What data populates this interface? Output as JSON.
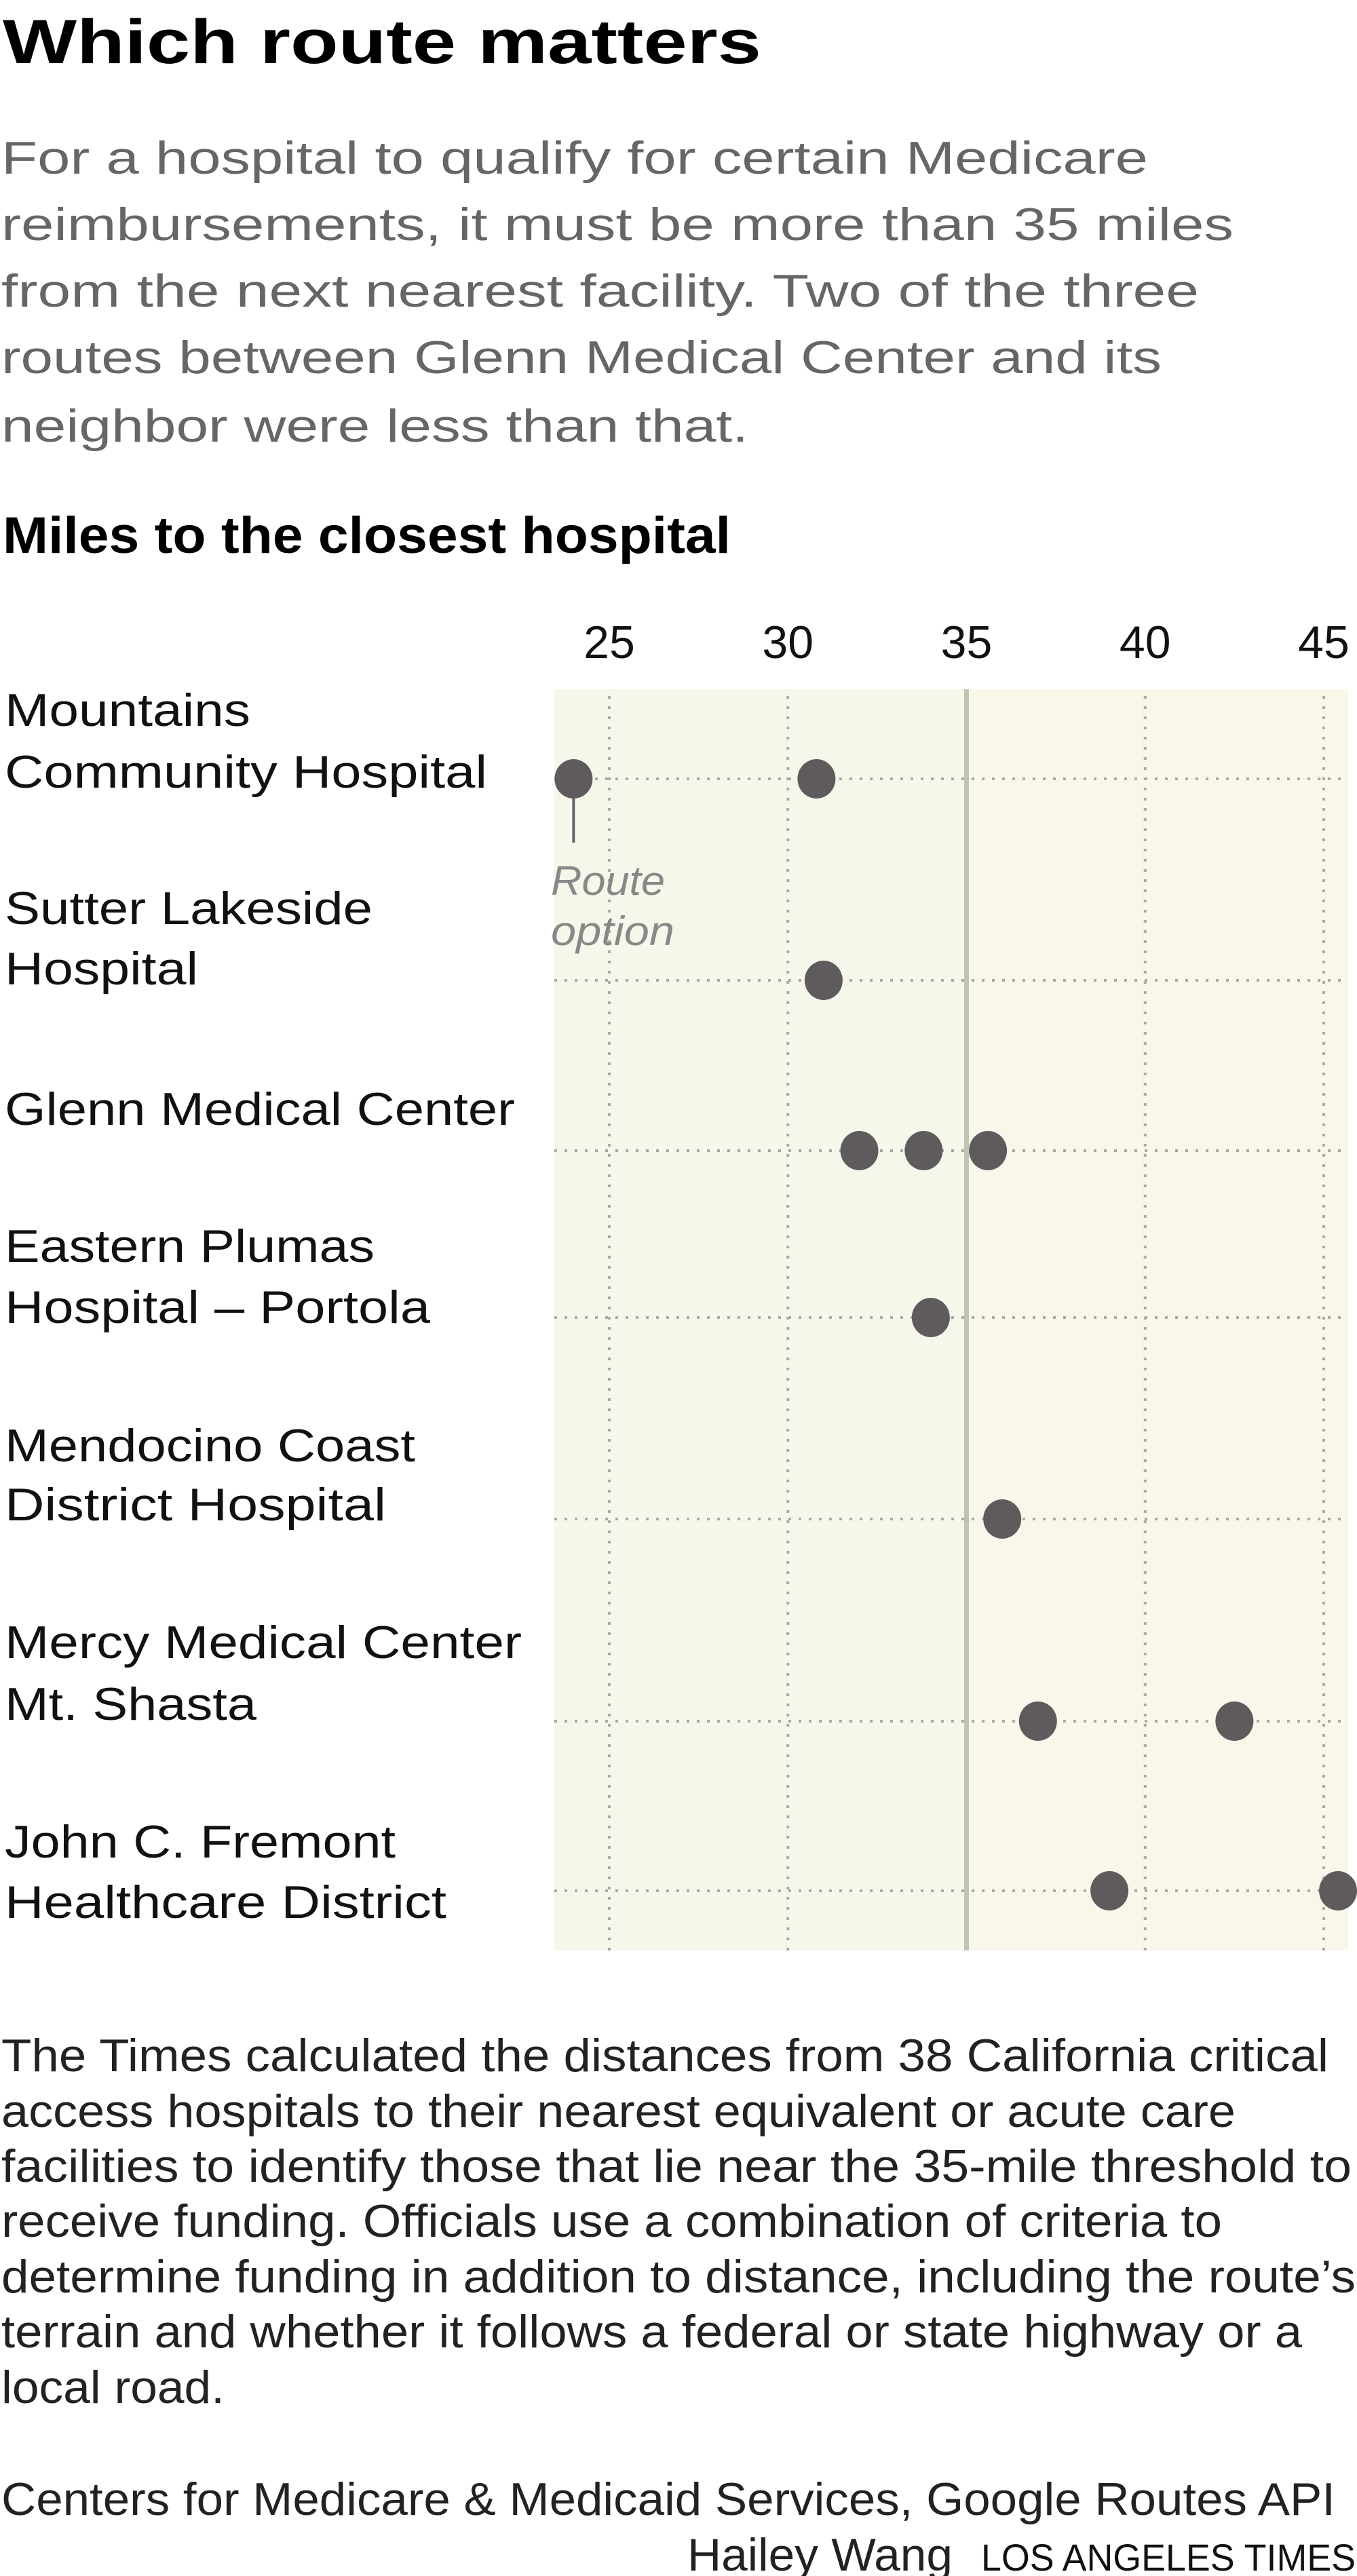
{
  "header": {
    "title": "Which route matters",
    "subtitle_lines": [
      "For a hospital to qualify for certain Medicare",
      "reimbursements, it must be more than 35 miles",
      "from the next nearest facility. Two of the three",
      "routes between Glenn Medical Center and its",
      "neighbor were less than that."
    ]
  },
  "chart_data": {
    "type": "scatter",
    "title": "Miles to the closest hospital",
    "x_ticks": [
      "25",
      "30",
      "35",
      "40",
      "45"
    ],
    "xlim": [
      23.5,
      45.7
    ],
    "threshold": 35,
    "grid": true,
    "annotation": {
      "lines": [
        "Route",
        "option"
      ],
      "points_to": "Mountains Community Hospital, 24"
    },
    "colors": {
      "dot": "#5f5b5c",
      "below_threshold_bg": "#f5f7ea",
      "above_threshold_bg": "#f9f6ea",
      "threshold_line": "#c3c3b3",
      "grid": "#a9a9a9"
    },
    "rows": [
      {
        "label_lines": [
          "Mountains",
          "Community Hospital"
        ],
        "values": [
          24.0,
          30.8
        ]
      },
      {
        "label_lines": [
          "Sutter Lakeside",
          "Hospital"
        ],
        "values": [
          31.0
        ]
      },
      {
        "label_lines": [
          "Glenn Medical Center"
        ],
        "values": [
          32.0,
          33.8,
          35.6
        ]
      },
      {
        "label_lines": [
          "Eastern Plumas",
          "Hospital – Portola"
        ],
        "values": [
          34.0
        ]
      },
      {
        "label_lines": [
          "Mendocino Coast",
          "District Hospital"
        ],
        "values": [
          36.0
        ]
      },
      {
        "label_lines": [
          "Mercy Medical Center",
          "Mt. Shasta"
        ],
        "values": [
          37.0,
          42.5
        ]
      },
      {
        "label_lines": [
          "John C. Fremont",
          "Healthcare District"
        ],
        "values": [
          39.0,
          45.4
        ]
      }
    ]
  },
  "footer": {
    "note_lines": [
      "The Times calculated the distances from 38 California critical",
      "access hospitals to their nearest equivalent or acute care",
      "facilities to identify those that lie near the 35-mile threshold to",
      "receive funding. Officials use a combination of criteria to",
      "determine funding in addition to distance, including the route’s",
      "terrain and whether it follows a federal or state highway or a",
      "local road."
    ],
    "source": "Centers for Medicare & Medicaid Services, Google Routes API",
    "byline": "Hailey Wang",
    "brand": "LOS ANGELES TIMES"
  }
}
